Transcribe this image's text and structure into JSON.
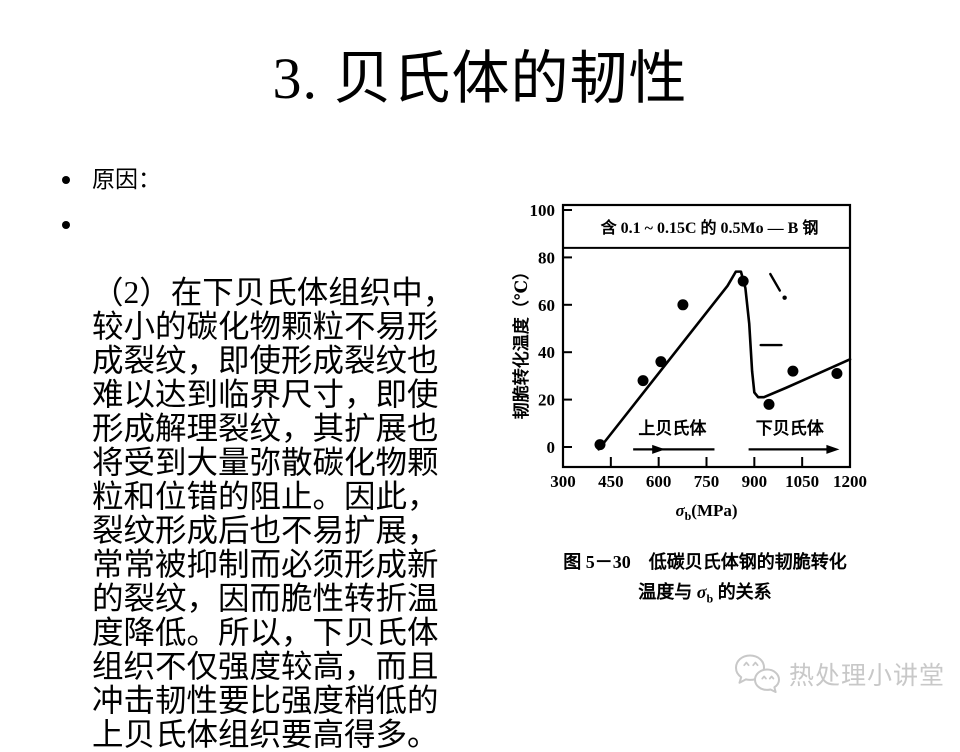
{
  "slide": {
    "title": "3. 贝氏体的韧性",
    "bullets": [
      {
        "text": "原因："
      },
      {
        "text": "（2）在下贝氏体组织中，\n较小的碳化物颗粒不易形\n成裂纹，即使形成裂纹也\n难以达到临界尺寸，即使\n形成解理裂纹，其扩展也\n将受到大量弥散碳化物颗\n粒和位错的阻止。因此，\n裂纹形成后也不易扩展，\n常常被抑制而必须形成新\n的裂纹，因而脆性转折温\n度降低。所以，下贝氏体\n组织不仅强度较高，而且\n冲击韧性要比强度稍低的\n上贝氏体组织要高得多。"
      }
    ]
  },
  "figure": {
    "caption_line1": "图 5－30　低碳贝氏体钢的韧脆转化",
    "caption_line2_prefix": "温度与 ",
    "caption_sigma": "σ",
    "caption_sigma_sub": "b",
    "caption_line2_suffix": " 的关系"
  },
  "watermark": {
    "text": "热处理小讲堂"
  },
  "chart_data": {
    "type": "scatter",
    "annotation": "含 0.1 ~ 0.15C 的 0.5Mo — B 钢",
    "annotation_underline_y": 84,
    "ylabel": "韧脆转化温度（℃）",
    "xlabel": {
      "sigma": "σ",
      "sub": "b",
      "unit": "(MPa)"
    },
    "xlim": [
      300,
      1200
    ],
    "ylim": [
      0,
      100
    ],
    "xticks": [
      300,
      450,
      600,
      750,
      900,
      1050,
      1200
    ],
    "yticks": [
      0,
      20,
      40,
      60,
      80,
      100
    ],
    "grid": false,
    "legend": null,
    "points": [
      [
        416,
        1
      ],
      [
        551,
        28
      ],
      [
        607,
        36
      ],
      [
        676,
        60
      ],
      [
        865,
        70
      ],
      [
        946,
        18
      ],
      [
        1021,
        32
      ],
      [
        1159,
        31
      ]
    ],
    "curve": [
      [
        412,
        -1
      ],
      [
        816,
        68
      ],
      [
        842,
        74
      ],
      [
        858,
        74
      ],
      [
        872,
        67
      ],
      [
        884,
        52
      ],
      [
        893,
        32
      ],
      [
        900,
        23
      ],
      [
        912,
        21
      ],
      [
        930,
        21
      ],
      [
        1000,
        25
      ],
      [
        1100,
        31
      ],
      [
        1200,
        37
      ]
    ],
    "regions": [
      {
        "label": "上贝氏体",
        "label_cx": 643,
        "label_y": 8,
        "x1": 520,
        "x2": 775,
        "arrow_y": -1,
        "head_frac": 0.32
      },
      {
        "label": "下贝氏体",
        "label_cx": 1011,
        "label_y": 8,
        "x1": 882,
        "x2": 1148,
        "arrow_y": -1,
        "head_frac": 1.0
      }
    ],
    "artifacts": [
      [
        [
          950,
          73
        ],
        [
          980,
          66
        ]
      ],
      [
        [
          920,
          43
        ],
        [
          985,
          43
        ]
      ]
    ],
    "artifact_dot": [
      995,
      63
    ]
  }
}
